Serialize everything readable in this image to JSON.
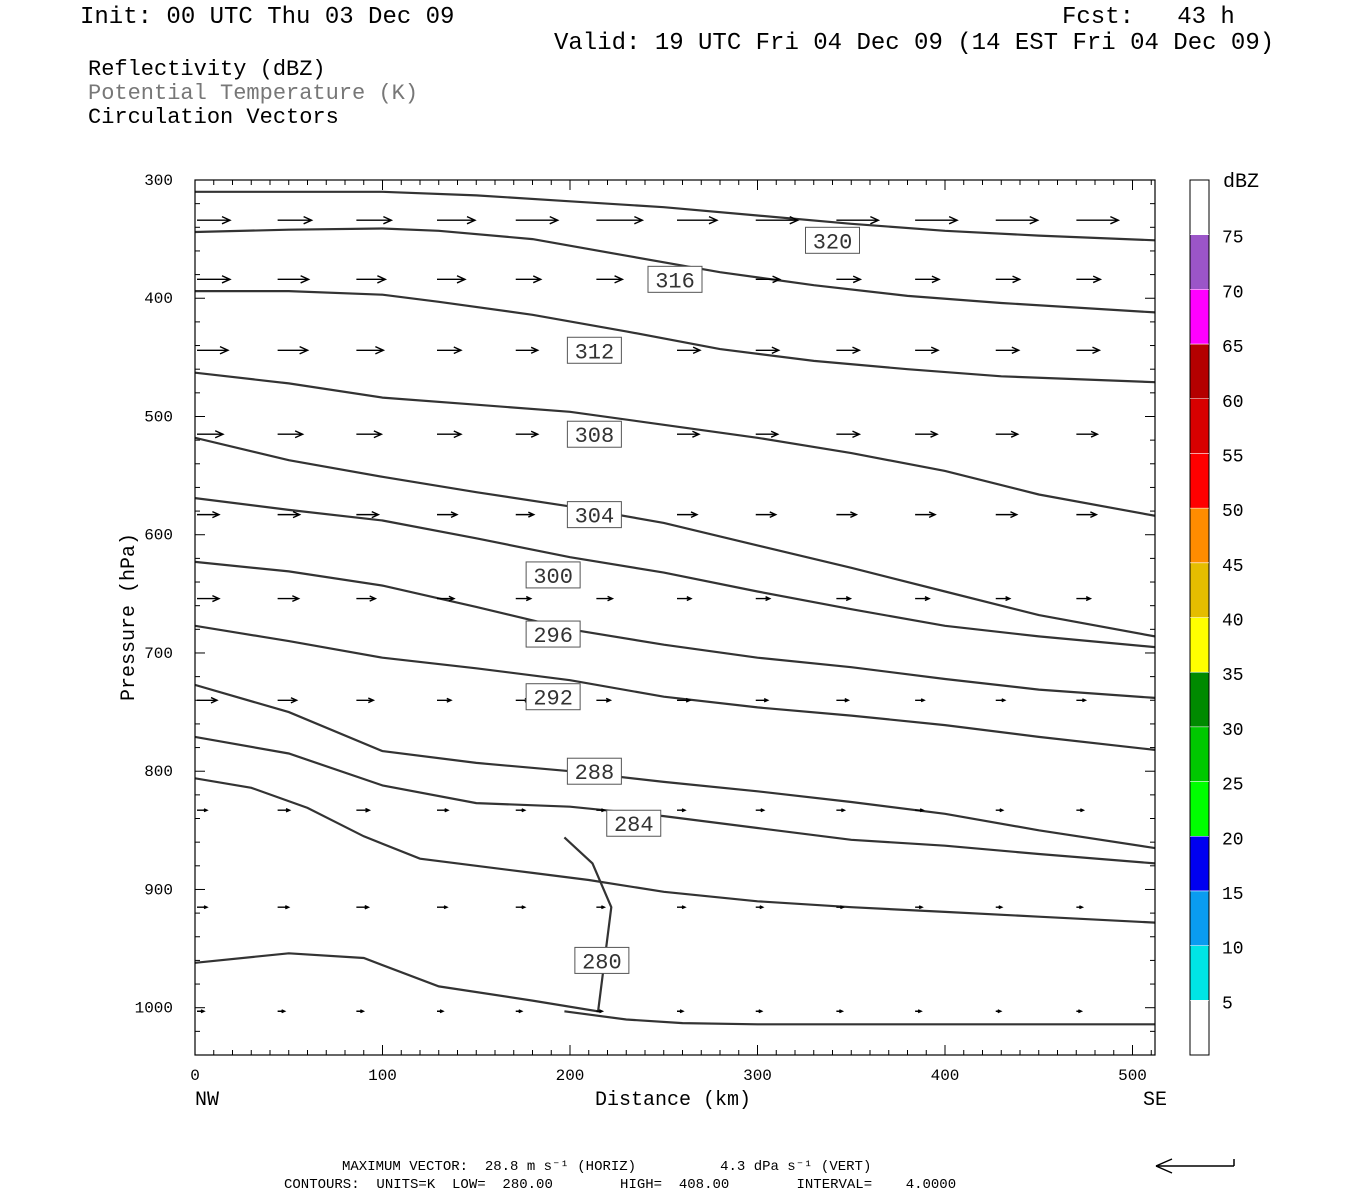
{
  "header": {
    "init": "Init: 00 UTC Thu 03 Dec 09",
    "fcst": "Fcst:   43 h",
    "valid": "Valid: 19 UTC Fri 04 Dec 09 (14 EST Fri 04 Dec 09)"
  },
  "fields": [
    "Reflectivity (dBZ)",
    "Potential Temperature (K)",
    "Circulation Vectors"
  ],
  "footer": {
    "max_vector": "MAXIMUM VECTOR:  28.8 m s⁻¹ (HORIZ)          4.3 dPa s⁻¹ (VERT)",
    "contours": "CONTOURS:  UNITS=K  LOW=  280.00        HIGH=  408.00        INTERVAL=    4.0000"
  },
  "colorbar": {
    "unit": "dBZ",
    "levels": [
      5,
      10,
      15,
      20,
      25,
      30,
      35,
      40,
      45,
      50,
      55,
      60,
      65,
      70,
      75
    ],
    "colors": [
      "#ffffff",
      "#00e5e5",
      "#0a9cf0",
      "#0000f0",
      "#00ff00",
      "#00c800",
      "#008a00",
      "#ffff00",
      "#e5bd00",
      "#ff8c00",
      "#ff0000",
      "#d80000",
      "#b40000",
      "#ff00ff",
      "#9b55c8",
      "#ffffff"
    ]
  },
  "chart_data": {
    "type": "contour",
    "xlabel": "Distance (km)",
    "ylabel": "Pressure (hPa)",
    "x_left_label": "NW",
    "x_right_label": "SE",
    "xlim": [
      0,
      512
    ],
    "ylim": [
      1040,
      300
    ],
    "xticks": [
      0,
      100,
      200,
      300,
      400,
      500
    ],
    "yticks": [
      300,
      400,
      500,
      600,
      700,
      800,
      900,
      1000
    ],
    "contour_labels": [
      {
        "value": "320",
        "x": 340,
        "p": 351
      },
      {
        "value": "316",
        "x": 256,
        "p": 384
      },
      {
        "value": "312",
        "x": 213,
        "p": 444
      },
      {
        "value": "308",
        "x": 213,
        "p": 515
      },
      {
        "value": "304",
        "x": 213,
        "p": 583
      },
      {
        "value": "300",
        "x": 191,
        "p": 634
      },
      {
        "value": "296",
        "x": 191,
        "p": 684
      },
      {
        "value": "292",
        "x": 191,
        "p": 737
      },
      {
        "value": "288",
        "x": 213,
        "p": 800
      },
      {
        "value": "284",
        "x": 234,
        "p": 844
      },
      {
        "value": "280",
        "x": 217,
        "p": 960
      }
    ],
    "isentropes": [
      {
        "x": [
          0,
          100,
          150,
          200,
          250,
          300,
          350,
          400,
          450,
          512
        ],
        "p": [
          310,
          310,
          313,
          318,
          323,
          330,
          337,
          343,
          347,
          351
        ]
      },
      {
        "x": [
          0,
          50,
          100,
          130,
          180,
          230,
          280,
          330,
          380,
          430,
          512
        ],
        "p": [
          344,
          342,
          341,
          343,
          350,
          364,
          378,
          389,
          398,
          404,
          412
        ]
      },
      {
        "x": [
          0,
          50,
          100,
          130,
          180,
          230,
          280,
          330,
          380,
          430,
          512
        ],
        "p": [
          394,
          394,
          397,
          403,
          414,
          428,
          443,
          453,
          460,
          466,
          471
        ]
      },
      {
        "x": [
          0,
          50,
          100,
          150,
          200,
          250,
          300,
          350,
          400,
          450,
          512
        ],
        "p": [
          463,
          472,
          484,
          490,
          496,
          507,
          518,
          531,
          546,
          566,
          584
        ]
      },
      {
        "x": [
          0,
          50,
          100,
          150,
          200,
          250,
          300,
          350,
          400,
          450,
          512
        ],
        "p": [
          518,
          537,
          551,
          564,
          576,
          590,
          609,
          628,
          648,
          668,
          686
        ]
      },
      {
        "x": [
          0,
          50,
          100,
          150,
          200,
          250,
          300,
          350,
          400,
          450,
          512
        ],
        "p": [
          569,
          579,
          588,
          603,
          619,
          632,
          648,
          663,
          677,
          686,
          695
        ]
      },
      {
        "x": [
          0,
          50,
          100,
          150,
          200,
          250,
          300,
          350,
          400,
          450,
          512
        ],
        "p": [
          623,
          631,
          643,
          661,
          680,
          693,
          704,
          712,
          722,
          731,
          738
        ]
      },
      {
        "x": [
          0,
          50,
          100,
          150,
          200,
          250,
          300,
          350,
          400,
          450,
          512
        ],
        "p": [
          677,
          690,
          704,
          713,
          723,
          737,
          746,
          753,
          761,
          771,
          782
        ]
      },
      {
        "x": [
          0,
          50,
          100,
          150,
          200,
          250,
          300,
          350,
          400,
          450,
          512
        ],
        "p": [
          727,
          750,
          783,
          793,
          800,
          809,
          817,
          826,
          836,
          850,
          865
        ]
      },
      {
        "x": [
          0,
          50,
          100,
          150,
          200,
          250,
          300,
          350,
          400,
          450,
          512
        ],
        "p": [
          771,
          785,
          812,
          827,
          830,
          838,
          848,
          858,
          863,
          870,
          878
        ]
      },
      {
        "x": [
          0,
          30,
          60,
          90,
          120,
          150,
          180,
          210,
          250,
          300,
          350,
          400,
          450,
          512
        ],
        "p": [
          806,
          814,
          831,
          855,
          874,
          880,
          886,
          892,
          902,
          910,
          915,
          919,
          923,
          928
        ]
      },
      {
        "x": [
          0,
          50,
          90,
          130,
          180,
          215,
          222,
          212,
          197
        ],
        "p": [
          962,
          954,
          958,
          982,
          994,
          1003,
          915,
          878,
          856
        ]
      },
      {
        "x": [
          197,
          230,
          260,
          300,
          350,
          400,
          450,
          512
        ],
        "p": [
          1003,
          1010,
          1013,
          1014,
          1014,
          1014,
          1014,
          1014
        ]
      }
    ],
    "vector_rows": [
      {
        "p": 334,
        "x": [
          0,
          43,
          85,
          128,
          170,
          213,
          256,
          298,
          341,
          383,
          426,
          469
        ],
        "len": [
          33,
          34,
          35,
          38,
          42,
          46,
          40,
          42,
          42,
          42,
          42,
          42
        ]
      },
      {
        "p": 384,
        "x": [
          0,
          43,
          85,
          128,
          170,
          213,
          256,
          298,
          341,
          383,
          426,
          469
        ],
        "len": [
          33,
          31,
          29,
          28,
          25,
          26,
          22,
          24,
          24,
          24,
          24,
          24
        ]
      },
      {
        "p": 444,
        "x": [
          0,
          43,
          85,
          128,
          170,
          213,
          256,
          298,
          341,
          383,
          426,
          469
        ],
        "len": [
          31,
          30,
          27,
          24,
          22,
          22,
          23,
          23,
          23,
          23,
          23,
          23
        ]
      },
      {
        "p": 515,
        "x": [
          0,
          43,
          85,
          128,
          170,
          213,
          256,
          298,
          341,
          383,
          426,
          469
        ],
        "len": [
          26,
          25,
          25,
          24,
          22,
          20,
          22,
          22,
          23,
          22,
          22,
          21
        ]
      },
      {
        "p": 583,
        "x": [
          0,
          43,
          85,
          128,
          170,
          213,
          256,
          298,
          341,
          383,
          426,
          469
        ],
        "len": [
          22,
          22,
          22,
          20,
          18,
          18,
          20,
          20,
          20,
          20,
          21,
          20
        ]
      },
      {
        "p": 654,
        "x": [
          0,
          43,
          85,
          128,
          170,
          213,
          256,
          298,
          341,
          383,
          426,
          469
        ],
        "len": [
          22,
          21,
          19,
          17,
          15,
          16,
          14,
          14,
          14,
          14,
          14,
          14
        ]
      },
      {
        "p": 740,
        "x": [
          0,
          43,
          85,
          128,
          170,
          213,
          256,
          298,
          341,
          383,
          426,
          469
        ],
        "len": [
          20,
          19,
          17,
          14,
          13,
          14,
          13,
          12,
          12,
          9,
          9,
          9
        ]
      },
      {
        "p": 833,
        "x": [
          0,
          43,
          85,
          128,
          170,
          213,
          256,
          298,
          341,
          383,
          426,
          469
        ],
        "len": [
          10,
          12,
          13,
          11,
          9,
          8,
          8,
          8,
          8,
          8,
          7,
          7
        ]
      },
      {
        "p": 915,
        "x": [
          0,
          43,
          85,
          128,
          170,
          213,
          256,
          298,
          341,
          383,
          426,
          469
        ],
        "len": [
          10,
          11,
          12,
          10,
          9,
          8,
          8,
          7,
          7,
          7,
          6,
          6
        ]
      },
      {
        "p": 1003,
        "x": [
          0,
          43,
          85,
          128,
          170,
          213,
          256,
          298,
          341,
          383,
          426,
          469
        ],
        "len": [
          7,
          7,
          7,
          6,
          6,
          6,
          6,
          6,
          6,
          6,
          5,
          5
        ]
      }
    ]
  }
}
